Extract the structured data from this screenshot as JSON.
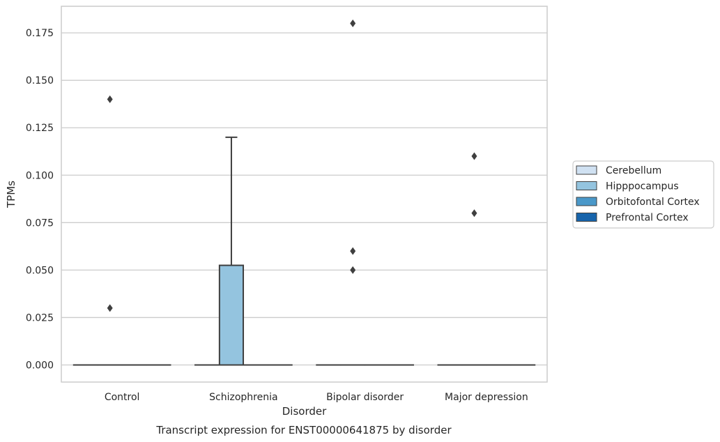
{
  "chart_data": {
    "type": "box",
    "xlabel": "Disorder",
    "ylabel": "TPMs",
    "caption": "Transcript expression for ENST00000641875 by disorder",
    "categories": [
      "Control",
      "Schizophrenia",
      "Bipolar disorder",
      "Major depression"
    ],
    "ylim": [
      -0.009,
      0.189
    ],
    "yticks": [
      0.0,
      0.025,
      0.05,
      0.075,
      0.1,
      0.125,
      0.15,
      0.175
    ],
    "ytick_labels": [
      "0.000",
      "0.025",
      "0.050",
      "0.075",
      "0.100",
      "0.125",
      "0.150",
      "0.175"
    ],
    "grid": "horizontal",
    "legend_position": "right",
    "colors": {
      "Cerebellum": "#d0e1f2",
      "Hipppocampus": "#94c4df",
      "Orbitofontal Cortex": "#4a98c9",
      "Prefrontal Cortex": "#1764ab",
      "grid": "#cccccc",
      "spine": "#cccccc",
      "box_edge": "#3f3f3f"
    },
    "series": [
      {
        "name": "Cerebellum",
        "boxes": [
          {
            "category": "Control",
            "q1": 0,
            "median": 0,
            "q3": 0,
            "whisker_low": 0,
            "whisker_high": 0,
            "outliers": []
          },
          {
            "category": "Schizophrenia",
            "q1": 0,
            "median": 0,
            "q3": 0,
            "whisker_low": 0,
            "whisker_high": 0,
            "outliers": []
          },
          {
            "category": "Bipolar disorder",
            "q1": 0,
            "median": 0,
            "q3": 0,
            "whisker_low": 0,
            "whisker_high": 0,
            "outliers": []
          },
          {
            "category": "Major depression",
            "q1": 0,
            "median": 0,
            "q3": 0,
            "whisker_low": 0,
            "whisker_high": 0,
            "outliers": []
          }
        ]
      },
      {
        "name": "Hipppocampus",
        "boxes": [
          {
            "category": "Control",
            "q1": 0,
            "median": 0,
            "q3": 0,
            "whisker_low": 0,
            "whisker_high": 0,
            "outliers": [
              0.14,
              0.03
            ]
          },
          {
            "category": "Schizophrenia",
            "q1": 0,
            "median": 0,
            "q3": 0.0525,
            "whisker_low": 0,
            "whisker_high": 0.12,
            "outliers": []
          },
          {
            "category": "Bipolar disorder",
            "q1": 0,
            "median": 0,
            "q3": 0,
            "whisker_low": 0,
            "whisker_high": 0,
            "outliers": [
              0.18,
              0.06,
              0.05
            ]
          },
          {
            "category": "Major depression",
            "q1": 0,
            "median": 0,
            "q3": 0,
            "whisker_low": 0,
            "whisker_high": 0,
            "outliers": [
              0.11,
              0.08
            ]
          }
        ]
      },
      {
        "name": "Orbitofontal Cortex",
        "boxes": [
          {
            "category": "Control",
            "q1": 0,
            "median": 0,
            "q3": 0,
            "whisker_low": 0,
            "whisker_high": 0,
            "outliers": []
          },
          {
            "category": "Schizophrenia",
            "q1": 0,
            "median": 0,
            "q3": 0,
            "whisker_low": 0,
            "whisker_high": 0,
            "outliers": []
          },
          {
            "category": "Bipolar disorder",
            "q1": 0,
            "median": 0,
            "q3": 0,
            "whisker_low": 0,
            "whisker_high": 0,
            "outliers": []
          },
          {
            "category": "Major depression",
            "q1": 0,
            "median": 0,
            "q3": 0,
            "whisker_low": 0,
            "whisker_high": 0,
            "outliers": []
          }
        ]
      },
      {
        "name": "Prefrontal Cortex",
        "boxes": [
          {
            "category": "Control",
            "q1": 0,
            "median": 0,
            "q3": 0,
            "whisker_low": 0,
            "whisker_high": 0,
            "outliers": []
          },
          {
            "category": "Schizophrenia",
            "q1": 0,
            "median": 0,
            "q3": 0,
            "whisker_low": 0,
            "whisker_high": 0,
            "outliers": []
          },
          {
            "category": "Bipolar disorder",
            "q1": 0,
            "median": 0,
            "q3": 0,
            "whisker_low": 0,
            "whisker_high": 0,
            "outliers": []
          },
          {
            "category": "Major depression",
            "q1": 0,
            "median": 0,
            "q3": 0,
            "whisker_low": 0,
            "whisker_high": 0,
            "outliers": []
          }
        ]
      }
    ],
    "legend": [
      "Cerebellum",
      "Hipppocampus",
      "Orbitofontal Cortex",
      "Prefrontal Cortex"
    ]
  }
}
